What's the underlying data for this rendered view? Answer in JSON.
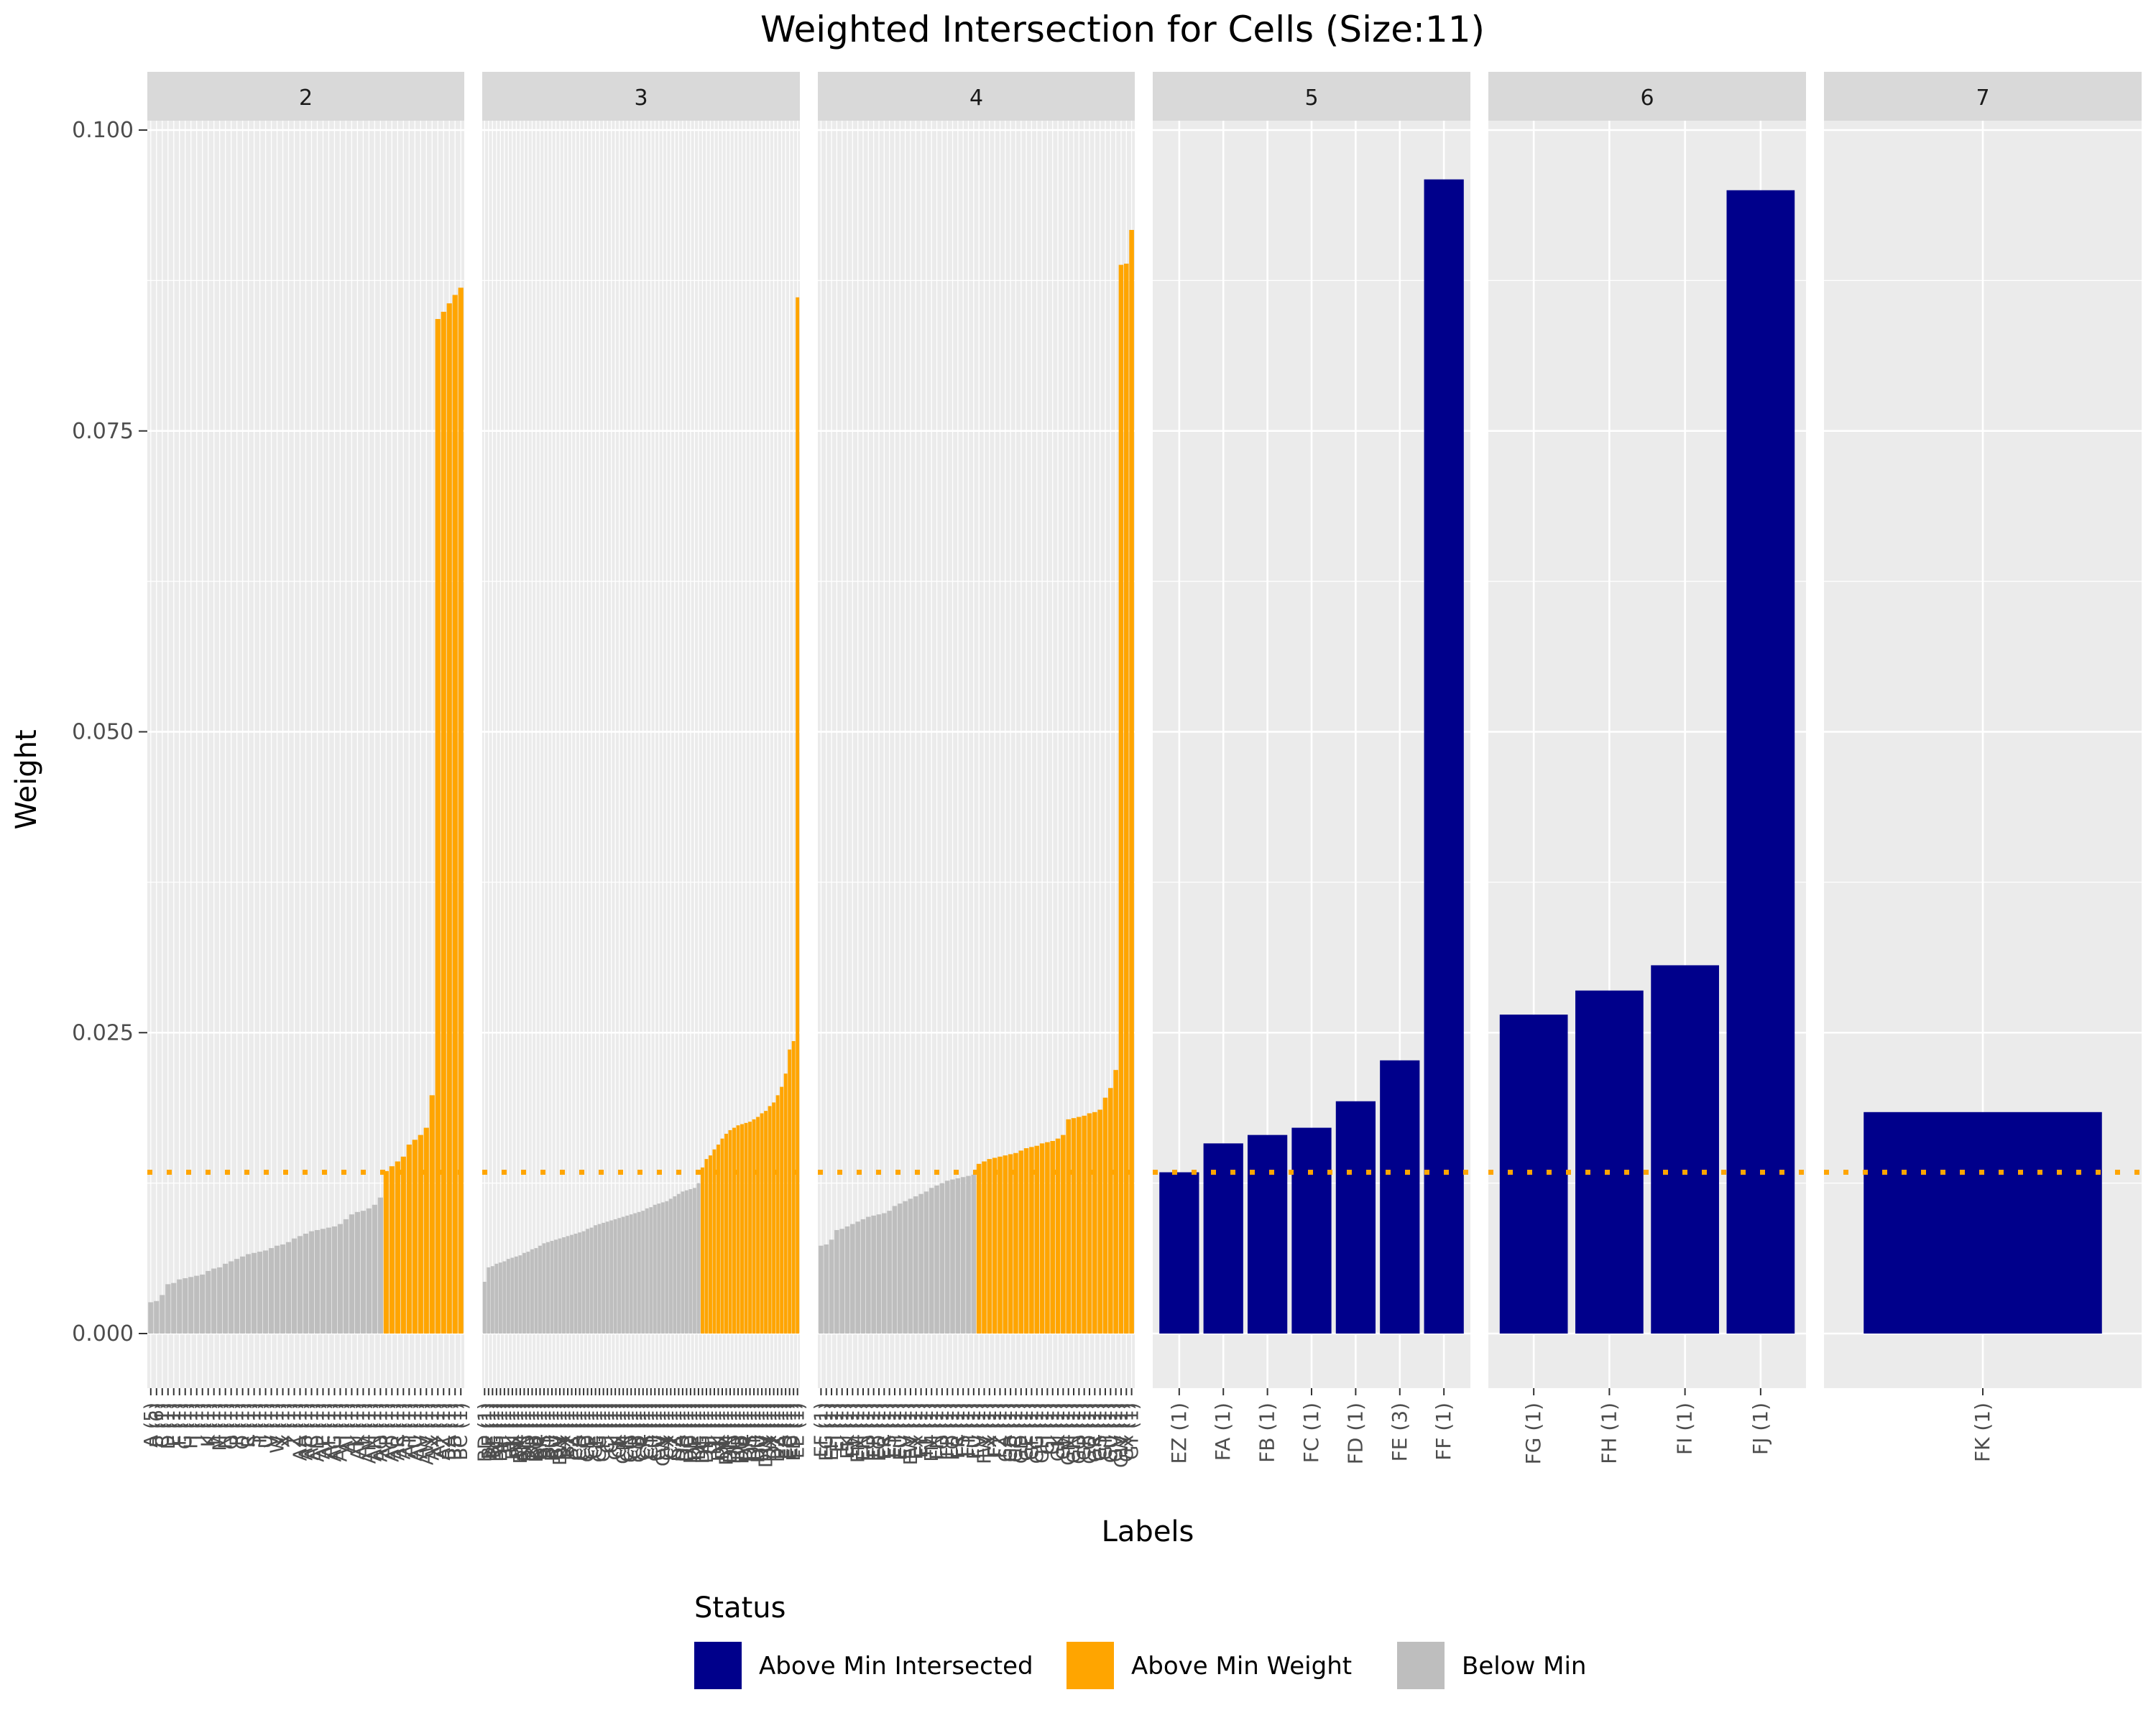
{
  "chart_data": {
    "type": "bar",
    "title": "Weighted Intersection for Cells (Size:11)",
    "xlabel": "Labels",
    "ylabel": "Weight",
    "ylim": [
      0,
      0.1
    ],
    "yticks": [
      "0.000",
      "0.025",
      "0.050",
      "0.075",
      "0.100"
    ],
    "threshold": 0.0134,
    "grid": true,
    "legend_placement": "bottom",
    "legend": {
      "title": "Status",
      "items": [
        {
          "label": "Above Min Intersected",
          "color": "#00008B"
        },
        {
          "label": "Above Min Weight",
          "color": "#FFA500"
        },
        {
          "label": "Below Min",
          "color": "#BEBEBE"
        }
      ]
    },
    "colors": {
      "panel_bg": "#EBEBEB",
      "strip_bg": "#D9D9D9",
      "grid": "#FFFFFF",
      "threshold_line": "#FFA500"
    },
    "panels": [
      {
        "strip": "2",
        "status": [
          2,
          2,
          2,
          2,
          2,
          2,
          2,
          2,
          2,
          2,
          2,
          2,
          2,
          2,
          2,
          2,
          2,
          2,
          2,
          2,
          2,
          2,
          2,
          2,
          2,
          2,
          2,
          2,
          2,
          2,
          2,
          2,
          2,
          2,
          2,
          2,
          2,
          2,
          2,
          2,
          2,
          1,
          1,
          1,
          1,
          1,
          1,
          1,
          1,
          1,
          1,
          1,
          1,
          1,
          1
        ],
        "values": [
          0.0026,
          0.0027,
          0.0032,
          0.0041,
          0.0042,
          0.0045,
          0.0046,
          0.0047,
          0.0048,
          0.0049,
          0.0052,
          0.0054,
          0.0055,
          0.0058,
          0.006,
          0.0062,
          0.0064,
          0.0066,
          0.0067,
          0.0068,
          0.0069,
          0.0071,
          0.0073,
          0.0074,
          0.0076,
          0.0079,
          0.0081,
          0.0083,
          0.0085,
          0.0086,
          0.0087,
          0.0088,
          0.0089,
          0.0091,
          0.0095,
          0.0099,
          0.0101,
          0.0102,
          0.0104,
          0.0107,
          0.0113,
          0.0135,
          0.0139,
          0.0143,
          0.0147,
          0.0157,
          0.0161,
          0.0165,
          0.0171,
          0.0198,
          0.0843,
          0.0849,
          0.0856,
          0.0863,
          0.0869
        ],
        "categories": [
          "A (5)",
          "B (6)",
          "C (1)",
          "D (1)",
          "E (1)",
          "F (1)",
          "G (1)",
          "H (1)",
          "I (1)",
          "J (1)",
          "K (1)",
          "L (1)",
          "M (1)",
          "N (1)",
          "O (1)",
          "P (1)",
          "Q (1)",
          "R (1)",
          "S (1)",
          "T (1)",
          "U (1)",
          "V (1)",
          "W (1)",
          "X (1)",
          "Y (1)",
          "Z (1)",
          "AA (1)",
          "AB (1)",
          "AC (1)",
          "AD (1)",
          "AE (1)",
          "AF (1)",
          "AG (1)",
          "AH (1)",
          "AI (1)",
          "AJ (1)",
          "AK (1)",
          "AL (1)",
          "AM (1)",
          "AN (1)",
          "AO (1)",
          "AP (1)",
          "AQ (1)",
          "AR (1)",
          "AS (1)",
          "AT (1)",
          "AU (1)",
          "AV (1)",
          "AW (1)",
          "AX (1)",
          "AY (1)",
          "AZ (1)",
          "BA (1)",
          "BB (1)",
          "BC (1)"
        ]
      },
      {
        "strip": "3",
        "status": [
          2,
          2,
          2,
          2,
          2,
          2,
          2,
          2,
          2,
          2,
          2,
          2,
          2,
          2,
          2,
          2,
          2,
          2,
          2,
          2,
          2,
          2,
          2,
          2,
          2,
          2,
          2,
          2,
          2,
          2,
          2,
          2,
          2,
          2,
          2,
          2,
          2,
          2,
          2,
          2,
          2,
          2,
          2,
          2,
          2,
          2,
          2,
          2,
          2,
          2,
          2,
          2,
          2,
          2,
          2,
          1,
          1,
          1,
          1,
          1,
          1,
          1,
          1,
          1,
          1,
          1,
          1,
          1,
          1,
          1,
          1,
          1,
          1,
          1,
          1,
          1,
          1,
          1,
          1,
          1
        ],
        "values": [
          0.0043,
          0.0055,
          0.0056,
          0.0058,
          0.0059,
          0.006,
          0.0062,
          0.0063,
          0.0064,
          0.0065,
          0.0067,
          0.0068,
          0.007,
          0.0071,
          0.0073,
          0.0075,
          0.0076,
          0.0077,
          0.0078,
          0.0079,
          0.008,
          0.0081,
          0.0082,
          0.0083,
          0.0084,
          0.0085,
          0.0087,
          0.0088,
          0.009,
          0.0091,
          0.0092,
          0.0093,
          0.0094,
          0.0095,
          0.0096,
          0.0097,
          0.0098,
          0.0099,
          0.01,
          0.0101,
          0.0102,
          0.0104,
          0.0105,
          0.0107,
          0.0108,
          0.0109,
          0.011,
          0.0112,
          0.0114,
          0.0116,
          0.0118,
          0.0119,
          0.012,
          0.0121,
          0.0125,
          0.0138,
          0.0145,
          0.0148,
          0.0153,
          0.0157,
          0.0162,
          0.0166,
          0.0169,
          0.0171,
          0.0173,
          0.0174,
          0.0175,
          0.0176,
          0.0178,
          0.018,
          0.0183,
          0.0185,
          0.0189,
          0.0192,
          0.0198,
          0.0205,
          0.0216,
          0.0236,
          0.0243,
          0.0861
        ],
        "categories": [
          "BD (1)",
          "BE (1)",
          "BF (1)",
          "BG (1)",
          "BH (1)",
          "BI (1)",
          "BJ (1)",
          "BK (1)",
          "BL (1)",
          "BM (1)",
          "BN (1)",
          "BO (1)",
          "BP (1)",
          "BQ (1)",
          "BR (1)",
          "BS (1)",
          "BT (1)",
          "BU (1)",
          "BV (1)",
          "BW (1)",
          "BX (1)",
          "BY (1)",
          "BZ (1)",
          "CA (1)",
          "CB (1)",
          "CC (1)",
          "CD (1)",
          "CE (1)",
          "CF (1)",
          "CG (1)",
          "CH (1)",
          "CI (1)",
          "CJ (1)",
          "CK (1)",
          "CL (1)",
          "CM (1)",
          "CN (1)",
          "CO (1)",
          "CP (1)",
          "CQ (1)",
          "CR (1)",
          "CS (1)",
          "CT (1)",
          "CU (1)",
          "CV (1)",
          "CW (1)",
          "CX (1)",
          "CY (1)",
          "CZ (1)",
          "DA (1)",
          "DB (1)",
          "DC (1)",
          "DD (1)",
          "DE (1)",
          "DF (1)",
          "DG (1)",
          "DH (1)",
          "DI (1)",
          "DJ (1)",
          "DK (1)",
          "DL (1)",
          "DM (1)",
          "DN (1)",
          "DO (1)",
          "DP (1)",
          "DQ (1)",
          "DR (1)",
          "DS (1)",
          "DT (1)",
          "DU (1)",
          "DV (1)",
          "DW (1)",
          "DX (1)",
          "DY (1)",
          "DZ (1)",
          "EA (1)",
          "EB (1)",
          "EC (1)",
          "ED (1)",
          "EE (1)"
        ]
      },
      {
        "strip": "4",
        "status": [
          2,
          2,
          2,
          2,
          2,
          2,
          2,
          2,
          2,
          2,
          2,
          2,
          2,
          2,
          2,
          2,
          2,
          2,
          2,
          2,
          2,
          2,
          2,
          2,
          2,
          2,
          2,
          2,
          2,
          2,
          1,
          1,
          1,
          1,
          1,
          1,
          1,
          1,
          1,
          1,
          1,
          1,
          1,
          1,
          1,
          1,
          1,
          1,
          1,
          1,
          1,
          1,
          1,
          1,
          1,
          1,
          1,
          1,
          1,
          1
        ],
        "values": [
          0.0073,
          0.0074,
          0.0078,
          0.0086,
          0.0087,
          0.0089,
          0.0091,
          0.0093,
          0.0095,
          0.0097,
          0.0098,
          0.0099,
          0.01,
          0.0102,
          0.0106,
          0.0108,
          0.011,
          0.0112,
          0.0114,
          0.0116,
          0.0118,
          0.0121,
          0.0123,
          0.0125,
          0.0127,
          0.0128,
          0.0129,
          0.013,
          0.0131,
          0.0132,
          0.0141,
          0.0143,
          0.0145,
          0.0146,
          0.0147,
          0.0148,
          0.0149,
          0.015,
          0.0152,
          0.0154,
          0.0155,
          0.0156,
          0.0158,
          0.0159,
          0.016,
          0.0162,
          0.0165,
          0.0178,
          0.0179,
          0.018,
          0.0181,
          0.0183,
          0.0184,
          0.0186,
          0.0196,
          0.0204,
          0.0219,
          0.0888,
          0.0889,
          0.0917
        ],
        "categories": [
          "EF (1)",
          "EG (1)",
          "EH (1)",
          "EI (1)",
          "EJ (1)",
          "EK (1)",
          "EL (1)",
          "EM (1)",
          "EN (1)",
          "EO (1)",
          "EP (1)",
          "EQ (1)",
          "ER (1)",
          "ES (1)",
          "ET (1)",
          "EU (1)",
          "EV (1)",
          "EW (1)",
          "EX (1)",
          "EY (1)",
          "FL (1)",
          "FM (1)",
          "FN (1)",
          "FO (1)",
          "FP (1)",
          "FQ (1)",
          "FR (1)",
          "FS (1)",
          "FT (1)",
          "FU (1)",
          "FV (1)",
          "FW (1)",
          "FX (1)",
          "FY (1)",
          "FZ (1)",
          "GA (1)",
          "GB (1)",
          "GC (1)",
          "GD (1)",
          "GE (1)",
          "GF (1)",
          "GG (1)",
          "GH (1)",
          "GI (1)",
          "GJ (1)",
          "GK (1)",
          "GL (1)",
          "GM (1)",
          "GN (1)",
          "GO (1)",
          "GP (1)",
          "GQ (1)",
          "GR (1)",
          "GS (1)",
          "GT (1)",
          "GU (1)",
          "GV (1)",
          "GW (1)",
          "GX (1)",
          "GY (1)"
        ]
      },
      {
        "strip": "5",
        "status": [
          0,
          0,
          0,
          0,
          0,
          0,
          0
        ],
        "values": [
          0.0134,
          0.0158,
          0.0165,
          0.0171,
          0.0193,
          0.0227,
          0.0959
        ],
        "categories": [
          "EZ (1)",
          "FA (1)",
          "FB (1)",
          "FC (1)",
          "FD (1)",
          "FE (3)",
          "FF (1)"
        ]
      },
      {
        "strip": "6",
        "status": [
          0,
          0,
          0,
          0
        ],
        "values": [
          0.0265,
          0.0285,
          0.0306,
          0.095
        ],
        "categories": [
          "FG (1)",
          "FH (1)",
          "FI (1)",
          "FJ (1)"
        ]
      },
      {
        "strip": "7",
        "status": [
          0
        ],
        "values": [
          0.0184
        ],
        "categories": [
          "FK (1)"
        ]
      }
    ]
  }
}
